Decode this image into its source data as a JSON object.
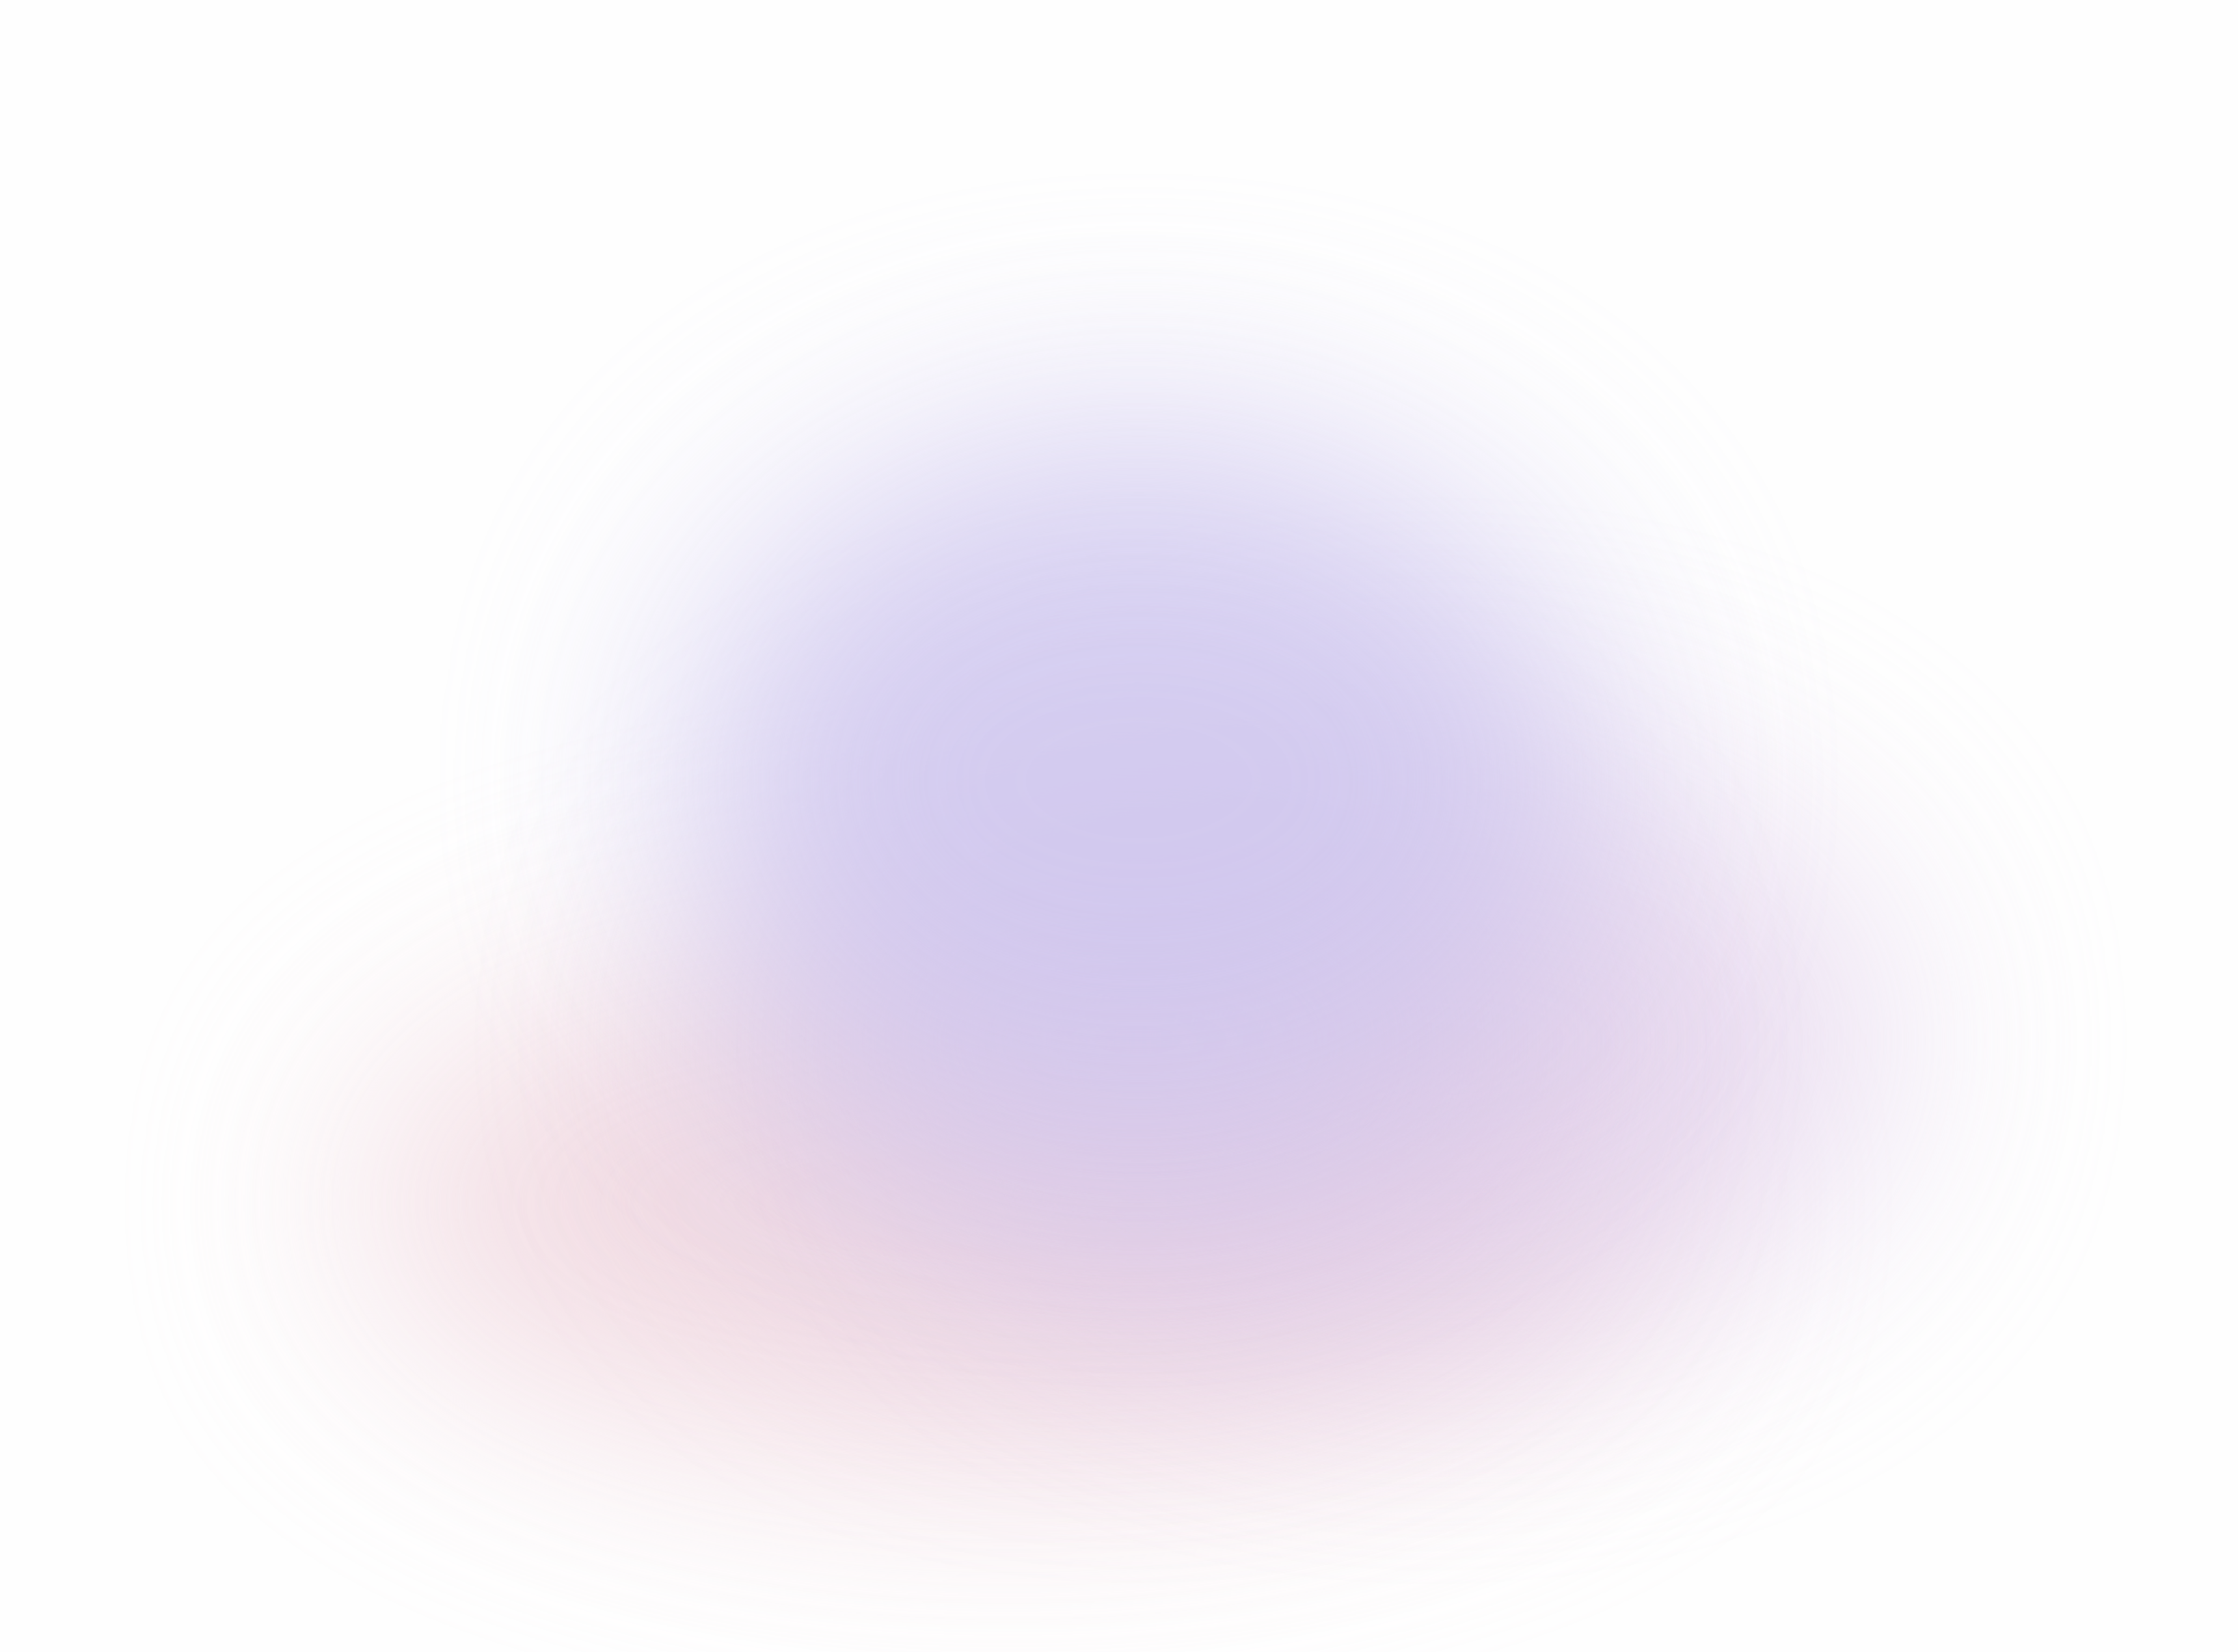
{
  "background": {
    "base_color": "#fefefe",
    "gradient_colors": [
      "#cfc7ef",
      "#e3d2ec",
      "#dcc8e4",
      "#f0d6de"
    ]
  }
}
